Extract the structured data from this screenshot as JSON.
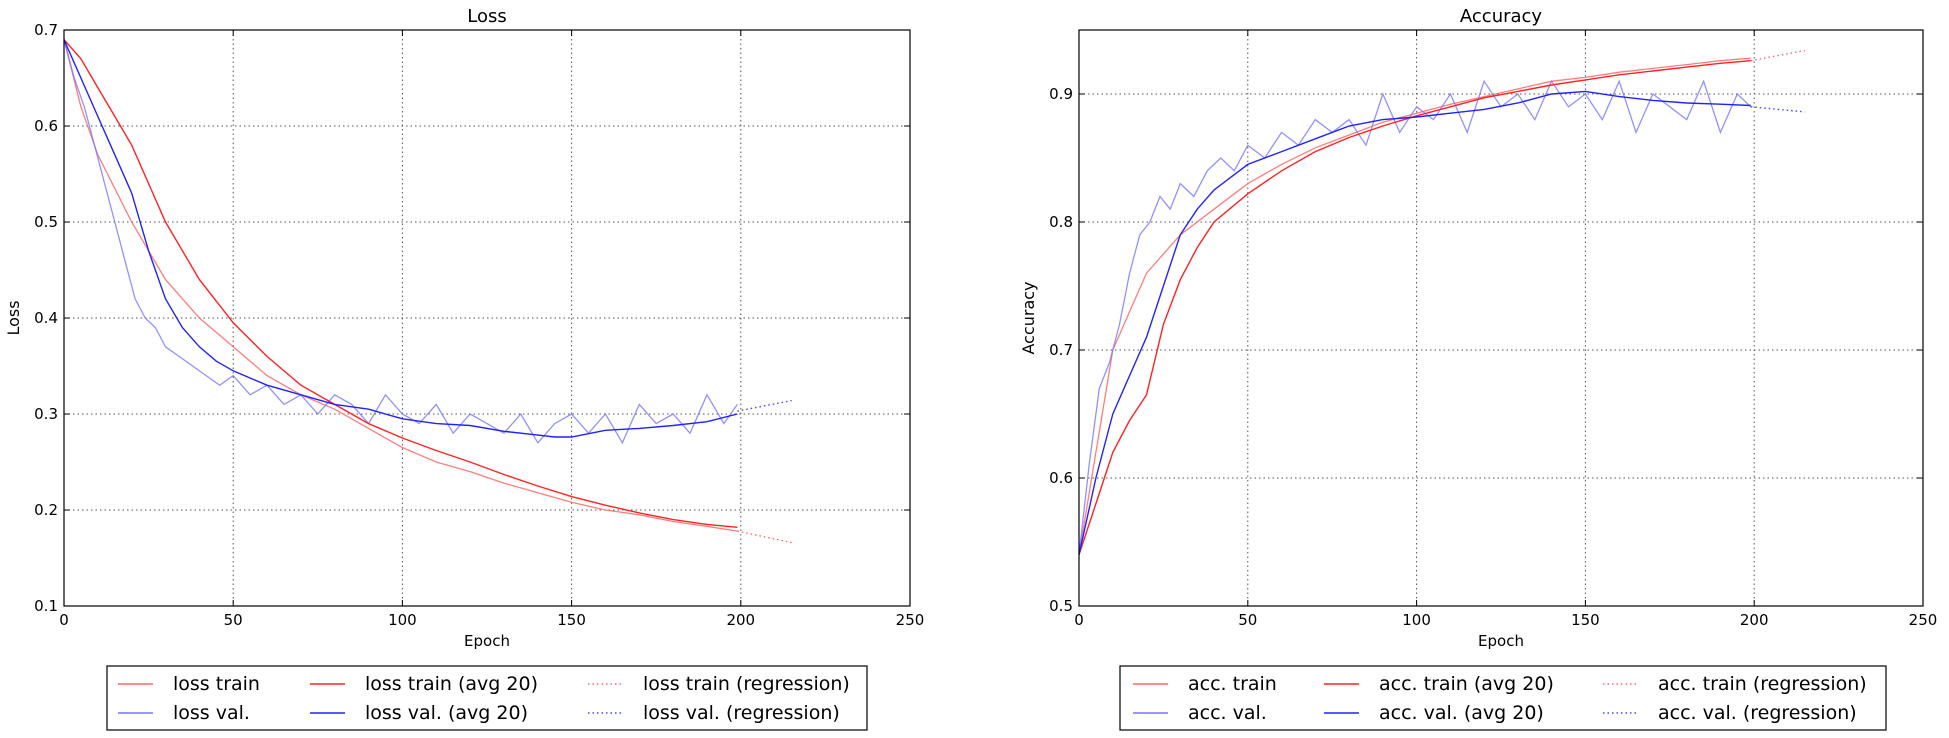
{
  "chart_data": [
    {
      "type": "line",
      "title": "Loss",
      "xlabel": "Epoch",
      "ylabel": "Loss",
      "xlim": [
        0,
        250
      ],
      "ylim": [
        0.1,
        0.7
      ],
      "xticks": [
        0,
        50,
        100,
        150,
        200,
        250
      ],
      "yticks": [
        0.1,
        0.2,
        0.3,
        0.4,
        0.5,
        0.6,
        0.7
      ],
      "xtick_labels": [
        "0",
        "50",
        "100",
        "150",
        "200",
        "250"
      ],
      "ytick_labels": [
        "0.1",
        "0.2",
        "0.3",
        "0.4",
        "0.5",
        "0.6",
        "0.7"
      ],
      "grid": true,
      "legend_position": "below",
      "legend": [
        "loss train",
        "loss val.",
        "loss train (avg 20)",
        "loss val. (avg 20)",
        "loss train (regression)",
        "loss val. (regression)"
      ],
      "series": [
        {
          "name": "loss train",
          "color": "#ff6666",
          "style": "solid",
          "x": [
            0,
            5,
            10,
            20,
            30,
            40,
            50,
            60,
            70,
            80,
            90,
            100,
            110,
            120,
            130,
            140,
            150,
            160,
            170,
            180,
            190,
            199
          ],
          "y": [
            0.69,
            0.62,
            0.57,
            0.5,
            0.44,
            0.4,
            0.37,
            0.34,
            0.32,
            0.305,
            0.285,
            0.265,
            0.25,
            0.24,
            0.228,
            0.218,
            0.208,
            0.2,
            0.195,
            0.188,
            0.183,
            0.178
          ]
        },
        {
          "name": "loss val.",
          "color": "#7777ff",
          "style": "solid",
          "x": [
            0,
            3,
            6,
            9,
            12,
            15,
            18,
            21,
            24,
            27,
            30,
            34,
            38,
            42,
            46,
            50,
            55,
            60,
            65,
            70,
            75,
            80,
            85,
            90,
            95,
            100,
            105,
            110,
            115,
            120,
            125,
            130,
            135,
            140,
            145,
            150,
            155,
            160,
            165,
            170,
            175,
            180,
            185,
            190,
            195,
            199
          ],
          "y": [
            0.69,
            0.65,
            0.62,
            0.58,
            0.54,
            0.5,
            0.46,
            0.42,
            0.4,
            0.39,
            0.37,
            0.36,
            0.35,
            0.34,
            0.33,
            0.34,
            0.32,
            0.33,
            0.31,
            0.32,
            0.3,
            0.32,
            0.31,
            0.29,
            0.32,
            0.3,
            0.29,
            0.31,
            0.28,
            0.3,
            0.29,
            0.28,
            0.3,
            0.27,
            0.29,
            0.3,
            0.28,
            0.3,
            0.27,
            0.31,
            0.29,
            0.3,
            0.28,
            0.32,
            0.29,
            0.31
          ]
        },
        {
          "name": "loss train (avg 20)",
          "color": "#ff2222",
          "style": "solid",
          "x": [
            0,
            5,
            10,
            15,
            20,
            25,
            30,
            40,
            50,
            60,
            70,
            80,
            90,
            100,
            110,
            120,
            130,
            140,
            150,
            160,
            170,
            180,
            190,
            199
          ],
          "y": [
            0.69,
            0.67,
            0.64,
            0.61,
            0.58,
            0.54,
            0.5,
            0.44,
            0.395,
            0.36,
            0.33,
            0.31,
            0.29,
            0.275,
            0.262,
            0.25,
            0.237,
            0.225,
            0.214,
            0.205,
            0.197,
            0.19,
            0.185,
            0.182
          ]
        },
        {
          "name": "loss val. (avg 20)",
          "color": "#2222ff",
          "style": "solid",
          "x": [
            0,
            5,
            10,
            15,
            20,
            25,
            30,
            35,
            40,
            45,
            50,
            60,
            70,
            80,
            90,
            100,
            110,
            120,
            130,
            140,
            145,
            150,
            160,
            170,
            180,
            190,
            199
          ],
          "y": [
            0.69,
            0.65,
            0.61,
            0.57,
            0.53,
            0.47,
            0.42,
            0.39,
            0.37,
            0.355,
            0.345,
            0.33,
            0.32,
            0.31,
            0.305,
            0.295,
            0.29,
            0.288,
            0.282,
            0.278,
            0.276,
            0.276,
            0.283,
            0.285,
            0.288,
            0.292,
            0.3
          ]
        },
        {
          "name": "loss train (regression)",
          "color": "#ff6666",
          "style": "dotted",
          "x": [
            199,
            215
          ],
          "y": [
            0.178,
            0.166
          ]
        },
        {
          "name": "loss val. (regression)",
          "color": "#4444ff",
          "style": "dotted",
          "x": [
            199,
            215
          ],
          "y": [
            0.303,
            0.314
          ]
        }
      ]
    },
    {
      "type": "line",
      "title": "Accuracy",
      "xlabel": "Epoch",
      "ylabel": "Accuracy",
      "xlim": [
        0,
        250
      ],
      "ylim": [
        0.5,
        0.95
      ],
      "xticks": [
        0,
        50,
        100,
        150,
        200,
        250
      ],
      "yticks": [
        0.5,
        0.6,
        0.7,
        0.8,
        0.9
      ],
      "xtick_labels": [
        "0",
        "50",
        "100",
        "150",
        "200",
        "250"
      ],
      "ytick_labels": [
        "0.5",
        "0.6",
        "0.7",
        "0.8",
        "0.9"
      ],
      "grid": true,
      "legend_position": "below",
      "legend": [
        "acc. train",
        "acc. val.",
        "acc. train (avg 20)",
        "acc. val. (avg 20)",
        "acc. train (regression)",
        "acc. val. (regression)"
      ],
      "series": [
        {
          "name": "acc. train",
          "color": "#ff6666",
          "style": "solid",
          "x": [
            0,
            5,
            10,
            15,
            20,
            30,
            40,
            50,
            60,
            70,
            80,
            90,
            100,
            110,
            120,
            130,
            140,
            150,
            160,
            170,
            180,
            190,
            199
          ],
          "y": [
            0.54,
            0.62,
            0.7,
            0.73,
            0.76,
            0.79,
            0.81,
            0.83,
            0.845,
            0.858,
            0.868,
            0.878,
            0.885,
            0.892,
            0.898,
            0.904,
            0.91,
            0.913,
            0.917,
            0.92,
            0.923,
            0.926,
            0.928
          ]
        },
        {
          "name": "acc. val.",
          "color": "#7777ff",
          "style": "solid",
          "x": [
            0,
            3,
            6,
            9,
            12,
            15,
            18,
            21,
            24,
            27,
            30,
            34,
            38,
            42,
            46,
            50,
            55,
            60,
            65,
            70,
            75,
            80,
            85,
            90,
            95,
            100,
            105,
            110,
            115,
            120,
            125,
            130,
            135,
            140,
            145,
            150,
            155,
            160,
            165,
            170,
            175,
            180,
            185,
            190,
            195,
            199
          ],
          "y": [
            0.54,
            0.61,
            0.67,
            0.69,
            0.72,
            0.76,
            0.79,
            0.8,
            0.82,
            0.81,
            0.83,
            0.82,
            0.84,
            0.85,
            0.84,
            0.86,
            0.85,
            0.87,
            0.86,
            0.88,
            0.87,
            0.88,
            0.86,
            0.9,
            0.87,
            0.89,
            0.88,
            0.9,
            0.87,
            0.91,
            0.89,
            0.9,
            0.88,
            0.91,
            0.89,
            0.9,
            0.88,
            0.91,
            0.87,
            0.9,
            0.89,
            0.88,
            0.91,
            0.87,
            0.9,
            0.89
          ]
        },
        {
          "name": "acc. train (avg 20)",
          "color": "#ff2222",
          "style": "solid",
          "x": [
            0,
            5,
            10,
            15,
            20,
            25,
            30,
            35,
            40,
            50,
            60,
            70,
            80,
            90,
            100,
            110,
            120,
            130,
            140,
            150,
            160,
            170,
            180,
            190,
            199
          ],
          "y": [
            0.54,
            0.58,
            0.62,
            0.645,
            0.665,
            0.72,
            0.755,
            0.78,
            0.8,
            0.822,
            0.84,
            0.855,
            0.866,
            0.875,
            0.883,
            0.89,
            0.897,
            0.902,
            0.907,
            0.911,
            0.915,
            0.918,
            0.921,
            0.924,
            0.926
          ]
        },
        {
          "name": "acc. val. (avg 20)",
          "color": "#2222ff",
          "style": "solid",
          "x": [
            0,
            5,
            10,
            15,
            20,
            25,
            30,
            35,
            40,
            50,
            60,
            70,
            80,
            90,
            100,
            110,
            120,
            130,
            140,
            150,
            160,
            170,
            180,
            190,
            199
          ],
          "y": [
            0.54,
            0.6,
            0.65,
            0.68,
            0.71,
            0.75,
            0.79,
            0.81,
            0.825,
            0.845,
            0.855,
            0.865,
            0.875,
            0.88,
            0.882,
            0.885,
            0.888,
            0.893,
            0.9,
            0.902,
            0.898,
            0.895,
            0.893,
            0.892,
            0.891
          ]
        },
        {
          "name": "acc. train (regression)",
          "color": "#ff6666",
          "style": "dotted",
          "x": [
            199,
            215
          ],
          "y": [
            0.926,
            0.934
          ]
        },
        {
          "name": "acc. val. (regression)",
          "color": "#4444ff",
          "style": "dotted",
          "x": [
            199,
            215
          ],
          "y": [
            0.89,
            0.886
          ]
        }
      ]
    }
  ]
}
